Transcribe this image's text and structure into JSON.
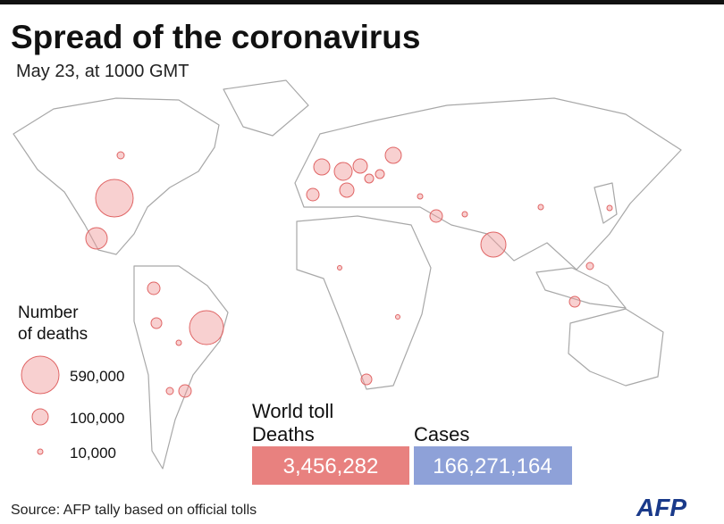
{
  "header": {
    "title": "Spread of the coronavirus",
    "subtitle": "May 23, at 1000 GMT"
  },
  "legend": {
    "title_lines": [
      "Number",
      "of deaths"
    ],
    "items": [
      "590,000",
      "100,000",
      "10,000"
    ]
  },
  "toll": {
    "title": "World toll",
    "deaths_label": "Deaths",
    "deaths": "3,456,282",
    "cases_label": "Cases",
    "cases": "166,271,164"
  },
  "source": "Source: AFP tally based on official tolls",
  "logo": "AFP"
}
